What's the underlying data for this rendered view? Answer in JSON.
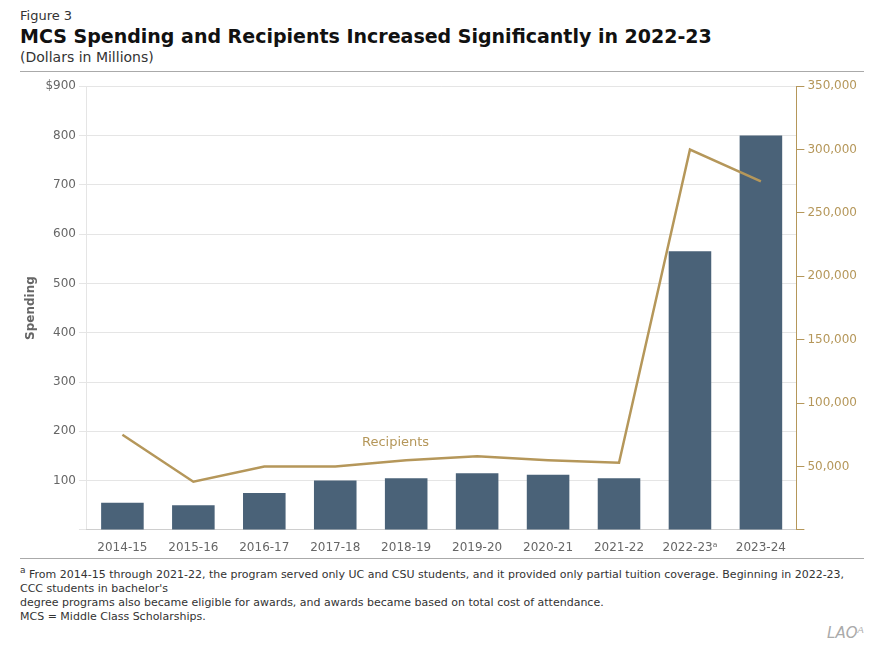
{
  "chart_data": {
    "type": "bar",
    "figure_label": "Figure 3",
    "title": "MCS Spending and Recipients Increased Significantly in 2022-23",
    "subtitle": "(Dollars in Millions)",
    "ylabel": "Spending",
    "categories": [
      "2014-15",
      "2015-16",
      "2016-17",
      "2017-18",
      "2018-19",
      "2019-20",
      "2020-21",
      "2021-22",
      "2022-23ᵃ",
      "2023-24"
    ],
    "series": [
      {
        "name": "Spending",
        "type": "bar",
        "color": "#4a6278",
        "values": [
          55,
          50,
          75,
          100,
          105,
          115,
          112,
          105,
          565,
          800
        ]
      },
      {
        "name": "Recipients",
        "type": "line",
        "axis": "y2",
        "color": "#b5975a",
        "values": [
          75000,
          38000,
          50000,
          50000,
          55000,
          58000,
          55000,
          53000,
          300000,
          275000
        ]
      }
    ],
    "ylim": [
      0,
      900
    ],
    "yticks": [
      {
        "value": 0,
        "label": null
      },
      100,
      200,
      300,
      400,
      500,
      600,
      700,
      800,
      {
        "value": 900,
        "label": "$900"
      }
    ],
    "y2lim": [
      0,
      350000
    ],
    "y2ticks": [
      {
        "value": 0,
        "label": null
      },
      {
        "value": 50000,
        "label": "50,000"
      },
      {
        "value": 100000,
        "label": "100,000"
      },
      {
        "value": 150000,
        "label": "150,000"
      },
      {
        "value": 200000,
        "label": "200,000"
      },
      {
        "value": 250000,
        "label": "250,000"
      },
      {
        "value": 300000,
        "label": "300,000"
      },
      {
        "value": 350000,
        "label": "350,000"
      }
    ],
    "grid": true,
    "annotations": [
      {
        "text": "Recipients",
        "x": "2018-19",
        "y": 62000,
        "axis": "y2"
      }
    ],
    "footnote_marker": "a",
    "footnotes": [
      " From 2014-15 through 2021-22, the program served only UC and CSU students, and it provided only partial tuition coverage. Beginning in 2022-23, CCC students in bachelor's",
      "degree programs also became eligible for awards, and awards became based on total cost of attendance.",
      "MCS = Middle Class Scholarships."
    ],
    "logo": "LAOᴬ"
  }
}
